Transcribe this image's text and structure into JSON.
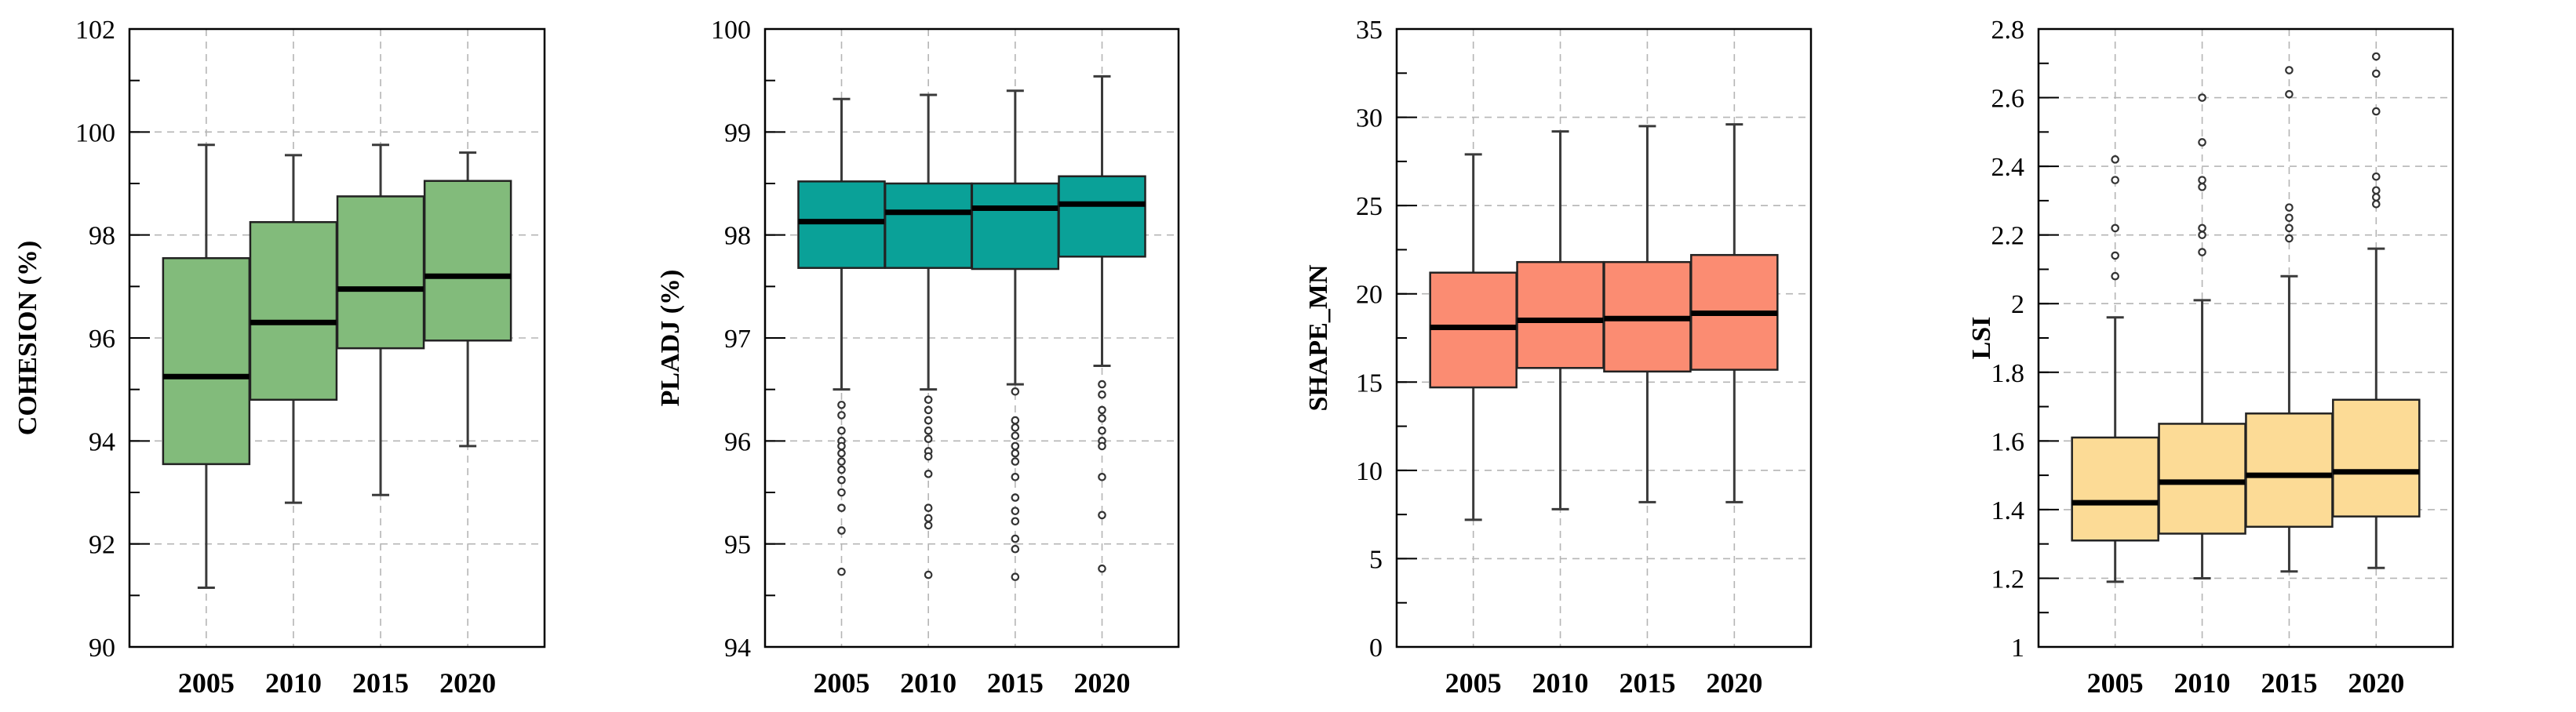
{
  "chart_data": [
    {
      "type": "boxplot",
      "ylabel": "COHESION (%)",
      "ylim": [
        90,
        102
      ],
      "yticks": [
        90,
        92,
        94,
        96,
        98,
        100,
        102
      ],
      "minor_step": 1,
      "categories": [
        "2005",
        "2010",
        "2015",
        "2020"
      ],
      "color": "#82bb7b",
      "boxes": [
        {
          "whislo": 91.15,
          "q1": 93.55,
          "med": 95.25,
          "q3": 97.55,
          "whishi": 99.75,
          "fliers": []
        },
        {
          "whislo": 92.8,
          "q1": 94.8,
          "med": 96.3,
          "q3": 98.25,
          "whishi": 99.55,
          "fliers": []
        },
        {
          "whislo": 92.95,
          "q1": 95.8,
          "med": 96.95,
          "q3": 98.75,
          "whishi": 99.75,
          "fliers": []
        },
        {
          "whislo": 93.9,
          "q1": 95.95,
          "med": 97.2,
          "q3": 99.05,
          "whishi": 99.6,
          "fliers": []
        }
      ]
    },
    {
      "type": "boxplot",
      "ylabel": "PLADJ (%)",
      "ylim": [
        94,
        100
      ],
      "yticks": [
        94,
        95,
        96,
        97,
        98,
        99,
        100
      ],
      "minor_step": 0.5,
      "categories": [
        "2005",
        "2010",
        "2015",
        "2020"
      ],
      "color": "#0aa198",
      "boxes": [
        {
          "whislo": 96.5,
          "q1": 97.68,
          "med": 98.13,
          "q3": 98.52,
          "whishi": 99.32,
          "fliers": [
            96.35,
            96.25,
            96.1,
            96.0,
            95.95,
            95.88,
            95.8,
            95.72,
            95.62,
            95.5,
            95.35,
            95.13,
            94.73
          ]
        },
        {
          "whislo": 96.5,
          "q1": 97.68,
          "med": 98.22,
          "q3": 98.5,
          "whishi": 99.36,
          "fliers": [
            96.4,
            96.3,
            96.2,
            96.1,
            96.02,
            95.9,
            95.85,
            95.68,
            95.35,
            95.25,
            95.18,
            94.7
          ]
        },
        {
          "whislo": 96.55,
          "q1": 97.67,
          "med": 98.26,
          "q3": 98.5,
          "whishi": 99.4,
          "fliers": [
            96.48,
            96.2,
            96.13,
            96.05,
            95.95,
            95.88,
            95.8,
            95.65,
            95.45,
            95.32,
            95.22,
            95.05,
            94.95,
            94.68
          ]
        },
        {
          "whislo": 96.73,
          "q1": 97.79,
          "med": 98.3,
          "q3": 98.57,
          "whishi": 99.54,
          "fliers": [
            96.55,
            96.45,
            96.3,
            96.22,
            96.1,
            96.0,
            95.95,
            95.65,
            95.28,
            94.76
          ]
        }
      ]
    },
    {
      "type": "boxplot",
      "ylabel": "SHAPE_MN",
      "ylim": [
        0,
        35
      ],
      "yticks": [
        0,
        5,
        10,
        15,
        20,
        25,
        30,
        35
      ],
      "minor_step": 2.5,
      "categories": [
        "2005",
        "2010",
        "2015",
        "2020"
      ],
      "color": "#fb8c72",
      "boxes": [
        {
          "whislo": 7.2,
          "q1": 14.7,
          "med": 18.1,
          "q3": 21.2,
          "whishi": 27.9,
          "fliers": []
        },
        {
          "whislo": 7.8,
          "q1": 15.8,
          "med": 18.5,
          "q3": 21.8,
          "whishi": 29.2,
          "fliers": []
        },
        {
          "whislo": 8.2,
          "q1": 15.6,
          "med": 18.6,
          "q3": 21.8,
          "whishi": 29.5,
          "fliers": []
        },
        {
          "whislo": 8.2,
          "q1": 15.7,
          "med": 18.9,
          "q3": 22.2,
          "whishi": 29.6,
          "fliers": []
        }
      ]
    },
    {
      "type": "boxplot",
      "ylabel": "LSI",
      "ylim": [
        1,
        2.8
      ],
      "yticks": [
        1,
        1.2,
        1.4,
        1.6,
        1.8,
        2,
        2.2,
        2.4,
        2.6,
        2.8
      ],
      "tick_labels": [
        "1",
        "1.2",
        "1.4",
        "1.6",
        "1.8",
        "2",
        "2.2",
        "2.4",
        "2.6",
        "2.8"
      ],
      "minor_step": 0.1,
      "categories": [
        "2005",
        "2010",
        "2015",
        "2020"
      ],
      "color": "#fcdb96",
      "boxes": [
        {
          "whislo": 1.19,
          "q1": 1.31,
          "med": 1.42,
          "q3": 1.61,
          "whishi": 1.96,
          "fliers": [
            2.42,
            2.36,
            2.22,
            2.14,
            2.08
          ]
        },
        {
          "whislo": 1.2,
          "q1": 1.33,
          "med": 1.48,
          "q3": 1.65,
          "whishi": 2.01,
          "fliers": [
            2.6,
            2.47,
            2.36,
            2.34,
            2.22,
            2.2,
            2.15
          ]
        },
        {
          "whislo": 1.22,
          "q1": 1.35,
          "med": 1.5,
          "q3": 1.68,
          "whishi": 2.08,
          "fliers": [
            2.68,
            2.61,
            2.28,
            2.25,
            2.22,
            2.19
          ]
        },
        {
          "whislo": 1.23,
          "q1": 1.38,
          "med": 1.51,
          "q3": 1.72,
          "whishi": 2.16,
          "fliers": [
            2.72,
            2.67,
            2.56,
            2.37,
            2.33,
            2.31,
            2.29
          ]
        }
      ]
    }
  ]
}
